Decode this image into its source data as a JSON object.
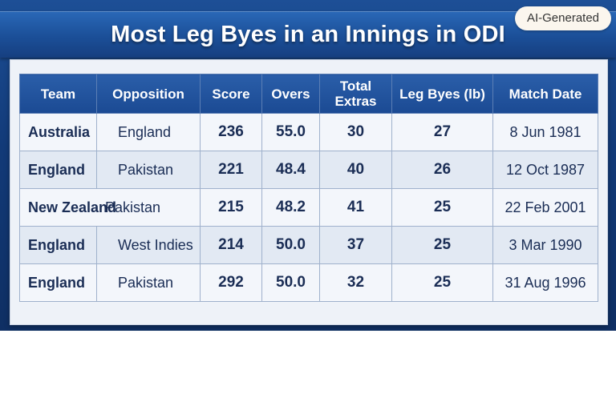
{
  "title": "Most Leg Byes in an Innings in ODI",
  "badge": "AI-Generated",
  "table": {
    "headers": [
      "Team",
      "Opposition",
      "Score",
      "Overs",
      "Total Extras",
      "Leg Byes (lb)",
      "Match Date"
    ],
    "rows": [
      {
        "team": "Australia",
        "opposition": "England",
        "score": "236",
        "overs": "55.0",
        "extras": "30",
        "leg_byes": "27",
        "date": "8 Jun 1981"
      },
      {
        "team": "England",
        "opposition": "Pakistan",
        "score": "221",
        "overs": "48.4",
        "extras": "40",
        "leg_byes": "26",
        "date": "12 Oct 1987"
      },
      {
        "team": "New Zealand",
        "opposition": "Pakistan",
        "score": "215",
        "overs": "48.2",
        "extras": "41",
        "leg_byes": "25",
        "date": "22 Feb 2001"
      },
      {
        "team": "England",
        "opposition": "West Indies",
        "score": "214",
        "overs": "50.0",
        "extras": "37",
        "leg_byes": "25",
        "date": "3 Mar 1990"
      },
      {
        "team": "England",
        "opposition": "Pakistan",
        "score": "292",
        "overs": "50.0",
        "extras": "32",
        "leg_byes": "25",
        "date": "31 Aug 1996"
      }
    ]
  },
  "colors": {
    "header_bg": "#1b4a93",
    "banner_bg": "#1b4f98",
    "cell_text": "#1a2d55"
  }
}
